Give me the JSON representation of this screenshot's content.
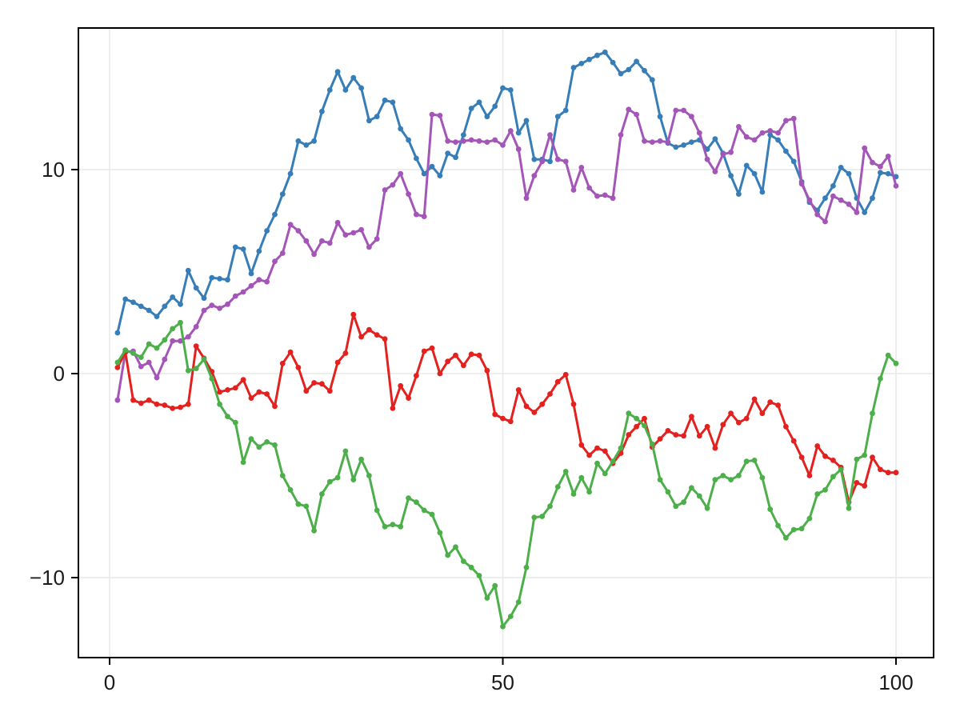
{
  "figure": {
    "background": "#ffffff",
    "frame_color": "#000000",
    "grid_color": "#e9e9e9",
    "tick_color": "#000000",
    "tick_label_color": "#1a1a1a"
  },
  "chart_data": {
    "type": "line",
    "title": "",
    "xlabel": "",
    "ylabel": "",
    "grid": true,
    "legend_position": "none",
    "marker": "circle",
    "x_start": 1,
    "x_step": 1,
    "xlim": [
      -3.97,
      104.78
    ],
    "ylim": [
      -13.92,
      16.94
    ],
    "x_ticks": [
      {
        "value": 0,
        "label": "0"
      },
      {
        "value": 50,
        "label": "50"
      },
      {
        "value": 100,
        "label": "100"
      }
    ],
    "y_ticks": [
      {
        "value": -10,
        "label": "−10"
      },
      {
        "value": 0,
        "label": "0"
      },
      {
        "value": 10,
        "label": "10"
      }
    ],
    "series": [
      {
        "key": "blue",
        "name": "series-1-blue",
        "color": "#377eb8",
        "values": [
          2.0,
          3.65,
          3.5,
          3.3,
          3.1,
          2.8,
          3.3,
          3.75,
          3.4,
          5.05,
          4.2,
          3.7,
          4.7,
          4.65,
          4.6,
          6.2,
          6.1,
          4.9,
          6.0,
          7.0,
          7.8,
          8.8,
          9.8,
          11.4,
          11.2,
          11.4,
          12.85,
          13.9,
          14.8,
          13.9,
          14.5,
          14.0,
          12.4,
          12.6,
          13.4,
          13.3,
          12.0,
          11.45,
          10.55,
          9.8,
          10.15,
          9.7,
          10.8,
          10.6,
          11.7,
          13.0,
          13.3,
          12.6,
          13.1,
          14.0,
          13.9,
          11.8,
          12.4,
          10.5,
          10.5,
          10.4,
          12.6,
          12.9,
          15.0,
          15.2,
          15.4,
          15.6,
          15.75,
          15.25,
          14.7,
          14.9,
          15.3,
          14.85,
          14.4,
          12.6,
          11.3,
          11.1,
          11.2,
          11.35,
          11.45,
          11.0,
          11.5,
          10.8,
          9.7,
          8.8,
          10.2,
          9.8,
          8.9,
          11.7,
          11.45,
          10.9,
          10.4,
          9.4,
          8.4,
          8.0,
          8.6,
          9.2,
          10.1,
          9.8,
          8.6,
          7.9,
          8.6,
          9.85,
          9.8,
          9.65
        ]
      },
      {
        "key": "purple",
        "name": "series-2-purple",
        "color": "#a455b8",
        "values": [
          -1.3,
          1.05,
          1.1,
          0.35,
          0.55,
          -0.2,
          0.7,
          1.6,
          1.6,
          1.8,
          2.3,
          3.1,
          3.35,
          3.2,
          3.4,
          3.8,
          4.0,
          4.3,
          4.6,
          4.5,
          5.5,
          5.9,
          7.3,
          7.0,
          6.5,
          5.85,
          6.5,
          6.4,
          7.4,
          6.8,
          6.9,
          7.05,
          6.2,
          6.6,
          9.0,
          9.25,
          9.8,
          8.8,
          7.8,
          7.7,
          12.7,
          12.65,
          11.4,
          11.35,
          11.4,
          11.45,
          11.4,
          11.35,
          11.45,
          11.2,
          11.9,
          11.0,
          8.6,
          9.7,
          10.4,
          11.7,
          10.5,
          10.4,
          9.0,
          10.1,
          9.1,
          8.7,
          8.75,
          8.6,
          11.7,
          12.95,
          12.7,
          11.4,
          11.35,
          11.4,
          11.35,
          12.9,
          12.9,
          12.6,
          11.8,
          10.5,
          9.9,
          10.75,
          10.85,
          12.1,
          11.6,
          11.45,
          11.8,
          11.9,
          11.8,
          12.4,
          12.5,
          9.3,
          8.5,
          7.8,
          7.45,
          8.7,
          8.5,
          8.3,
          7.9,
          11.05,
          10.35,
          10.15,
          10.65,
          9.2
        ]
      },
      {
        "key": "red",
        "name": "series-3-red",
        "color": "#e3211e",
        "values": [
          0.3,
          1.05,
          -1.3,
          -1.45,
          -1.3,
          -1.5,
          -1.55,
          -1.7,
          -1.65,
          -1.5,
          1.35,
          0.75,
          0.1,
          -0.9,
          -0.8,
          -0.7,
          -0.3,
          -1.2,
          -0.9,
          -1.0,
          -1.6,
          0.5,
          1.05,
          0.3,
          -0.85,
          -0.45,
          -0.5,
          -0.85,
          0.55,
          1.0,
          2.9,
          1.8,
          2.15,
          1.9,
          1.7,
          -1.7,
          -0.6,
          -1.2,
          -0.1,
          1.1,
          1.25,
          0.0,
          0.6,
          0.9,
          0.4,
          0.95,
          0.9,
          0.15,
          -2.0,
          -2.2,
          -2.35,
          -0.8,
          -1.6,
          -1.9,
          -1.5,
          -1.0,
          -0.4,
          -0.05,
          -1.5,
          -3.5,
          -4.0,
          -3.65,
          -3.8,
          -4.4,
          -3.9,
          -3.0,
          -2.6,
          -2.2,
          -3.6,
          -3.2,
          -2.8,
          -3.0,
          -3.05,
          -2.1,
          -3.05,
          -2.6,
          -3.65,
          -2.5,
          -1.95,
          -2.4,
          -2.2,
          -1.25,
          -1.95,
          -1.4,
          -1.55,
          -2.6,
          -3.3,
          -4.1,
          -5.0,
          -3.55,
          -4.05,
          -4.25,
          -4.6,
          -6.3,
          -5.35,
          -5.5,
          -4.1,
          -4.7,
          -4.85,
          -4.85
        ]
      },
      {
        "key": "green",
        "name": "series-4-green",
        "color": "#4caf4a",
        "values": [
          0.55,
          1.15,
          1.0,
          0.8,
          1.45,
          1.25,
          1.65,
          2.2,
          2.5,
          0.15,
          0.25,
          0.7,
          -0.25,
          -1.5,
          -2.1,
          -2.4,
          -4.35,
          -3.2,
          -3.6,
          -3.35,
          -3.5,
          -5.0,
          -5.7,
          -6.4,
          -6.5,
          -7.7,
          -5.9,
          -5.3,
          -5.1,
          -3.8,
          -5.2,
          -4.2,
          -5.0,
          -6.7,
          -7.5,
          -7.4,
          -7.5,
          -6.1,
          -6.3,
          -6.7,
          -6.9,
          -7.8,
          -8.9,
          -8.5,
          -9.2,
          -9.5,
          -9.9,
          -11.0,
          -10.4,
          -12.4,
          -11.9,
          -11.2,
          -9.5,
          -7.05,
          -7.0,
          -6.5,
          -5.55,
          -4.8,
          -5.9,
          -5.1,
          -5.8,
          -4.4,
          -4.9,
          -4.3,
          -3.65,
          -1.95,
          -2.2,
          -2.55,
          -3.45,
          -5.2,
          -5.8,
          -6.5,
          -6.3,
          -5.6,
          -6.0,
          -6.6,
          -5.2,
          -5.0,
          -5.2,
          -5.0,
          -4.3,
          -4.25,
          -5.1,
          -6.65,
          -7.45,
          -8.05,
          -7.65,
          -7.6,
          -7.1,
          -5.9,
          -5.7,
          -5.05,
          -4.7,
          -6.6,
          -4.2,
          -4.0,
          -1.95,
          -0.25,
          0.9,
          0.5
        ]
      }
    ]
  }
}
